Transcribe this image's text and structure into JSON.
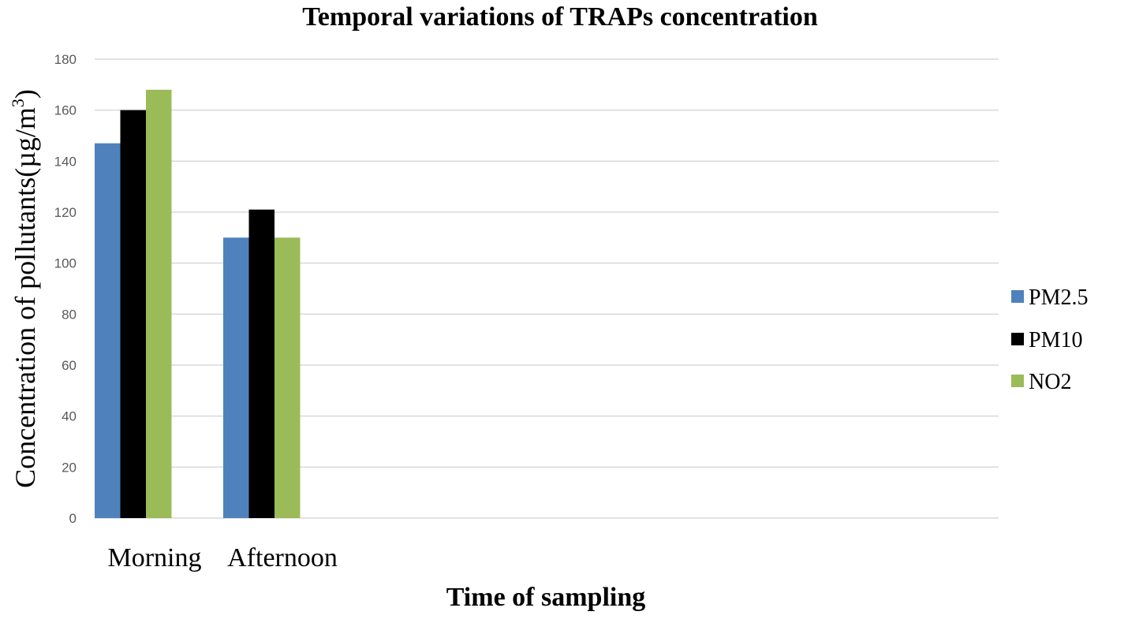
{
  "chart_data": {
    "type": "bar",
    "title": "Temporal variations of TRAPs concentration",
    "xlabel": "Time of sampling",
    "ylabel": "Concentration of pollutants(µg/m",
    "ylabel_superscript": "3",
    "ylabel_suffix": ")",
    "categories": [
      "Morning",
      "Afternoon"
    ],
    "series": [
      {
        "name": "PM2.5",
        "color": "#4f81bd",
        "values": [
          147,
          110
        ]
      },
      {
        "name": "PM10",
        "color": "#000000",
        "values": [
          160,
          121
        ]
      },
      {
        "name": "NO2",
        "color": "#9bbb59",
        "values": [
          168,
          110
        ]
      }
    ],
    "ylim": [
      0,
      180
    ],
    "yticks": [
      "0",
      "20",
      "40",
      "60",
      "80",
      "100",
      "120",
      "140",
      "160",
      "180"
    ],
    "grid": true,
    "legend_position": "right"
  }
}
